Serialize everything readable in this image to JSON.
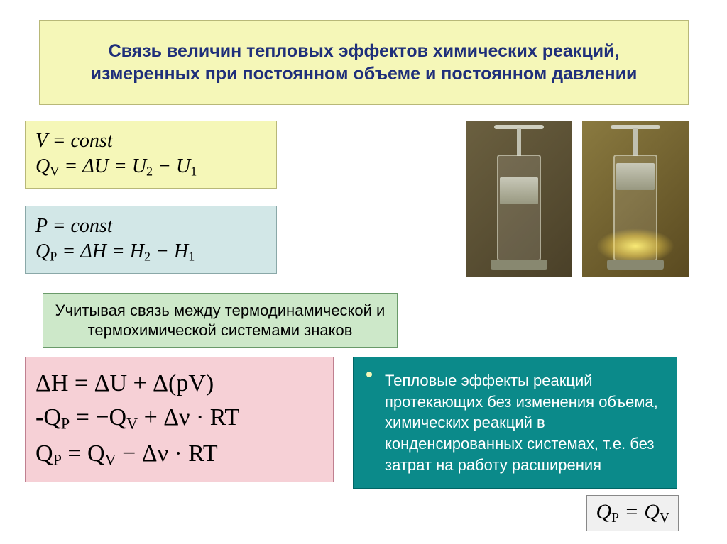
{
  "colors": {
    "title_bg": "#f5f7b8",
    "title_text": "#1f2f7a",
    "v_box_bg": "#f5f7b8",
    "p_box_bg": "#d2e7e7",
    "note_bg": "#cde8c9",
    "main_eq_bg": "#f6d0d6",
    "bullet_bg": "#0b8a8a",
    "bullet_text": "#ffffff",
    "qpqv_bg": "#f0f0f0"
  },
  "title": "Связь величин тепловых эффектов химических реакций, измеренных при постоянном объеме и постоянном давлении",
  "eq_v": {
    "line1": "V = const",
    "line2_html": "Q<sub>V</sub> = ΔU = U<sub>2</sub> − U<sub>1</sub>"
  },
  "eq_p": {
    "line1": "P = const",
    "line2_html": "Q<sub>P</sub> = ΔH = H<sub>2</sub> − H<sub>1</sub>"
  },
  "note": "Учитывая связь между термодинамической и термохимической системами знаков",
  "eq_main": {
    "line1": "ΔH = ΔU + Δ(pV)",
    "line2_html": "-Q<sub>P</sub> = −Q<sub>V</sub> + Δν · RT",
    "line3_html": "Q<sub>P</sub> = Q<sub>V</sub> − Δν · RT"
  },
  "bullet_text": "Тепловые эффекты реакций протекающих без изменения объема, химических реакций в конденсированных системах, т.е. без затрат на работу расширения",
  "eq_qpqv_html": "Q<sub>P</sub> = Q<sub>V</sub>",
  "images": {
    "calorimeter_left": {
      "state": "before-reaction",
      "glow": false
    },
    "calorimeter_right": {
      "state": "after-reaction",
      "glow": true
    }
  }
}
